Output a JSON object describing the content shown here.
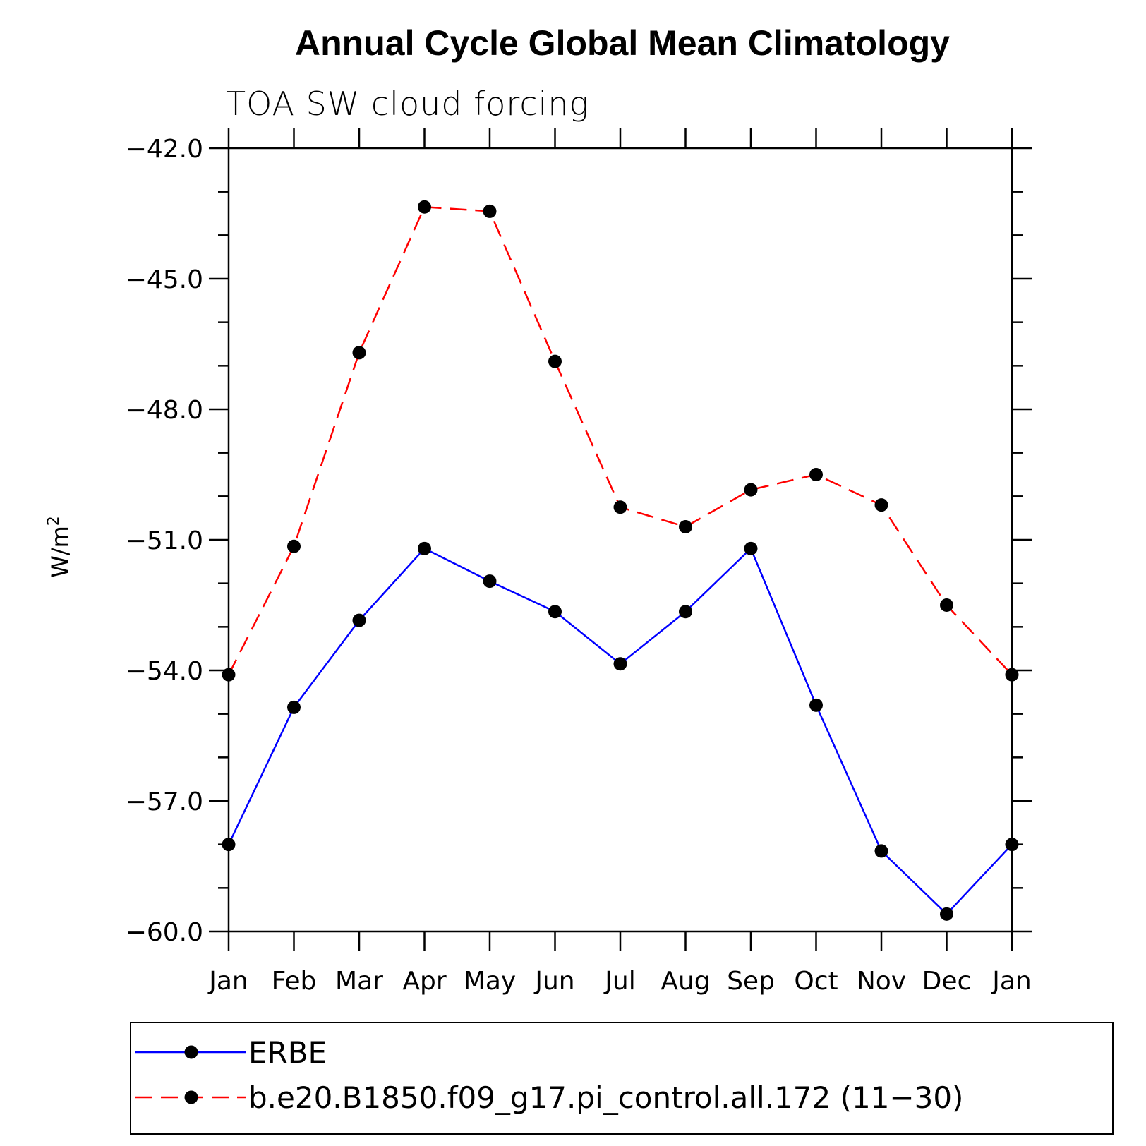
{
  "chart_data": {
    "type": "line",
    "title": "Annual Cycle Global Mean Climatology",
    "subtitle": "TOA SW cloud forcing",
    "ylabel": "W/m",
    "ylabel_sup": "2",
    "xlabel": "",
    "categories": [
      "Jan",
      "Feb",
      "Mar",
      "Apr",
      "May",
      "Jun",
      "Jul",
      "Aug",
      "Sep",
      "Oct",
      "Nov",
      "Dec",
      "Jan"
    ],
    "ylim": [
      -60.0,
      -42.0
    ],
    "yticks": [
      -42.0,
      -45.0,
      -48.0,
      -51.0,
      -54.0,
      -57.0,
      -60.0
    ],
    "ytick_labels": [
      "−42.0",
      "−45.0",
      "−48.0",
      "−51.0",
      "−54.0",
      "−57.0",
      "−60.0"
    ],
    "grid": false,
    "legend_position": "bottom",
    "series": [
      {
        "name": "ERBE",
        "color": "#0000ff",
        "style": "solid",
        "values": [
          -58.0,
          -54.85,
          -52.85,
          -51.2,
          -51.95,
          -52.65,
          -53.85,
          -52.65,
          -51.2,
          -54.8,
          -58.15,
          -59.6,
          -58.0
        ]
      },
      {
        "name": "b.e20.B1850.f09_g17.pi_control.all.172 (11−30)",
        "color": "#ff0000",
        "style": "dashed",
        "values": [
          -54.1,
          -51.15,
          -46.7,
          -43.35,
          -43.45,
          -46.9,
          -50.25,
          -50.7,
          -49.85,
          -49.5,
          -50.2,
          -52.5,
          -54.1
        ]
      }
    ]
  }
}
